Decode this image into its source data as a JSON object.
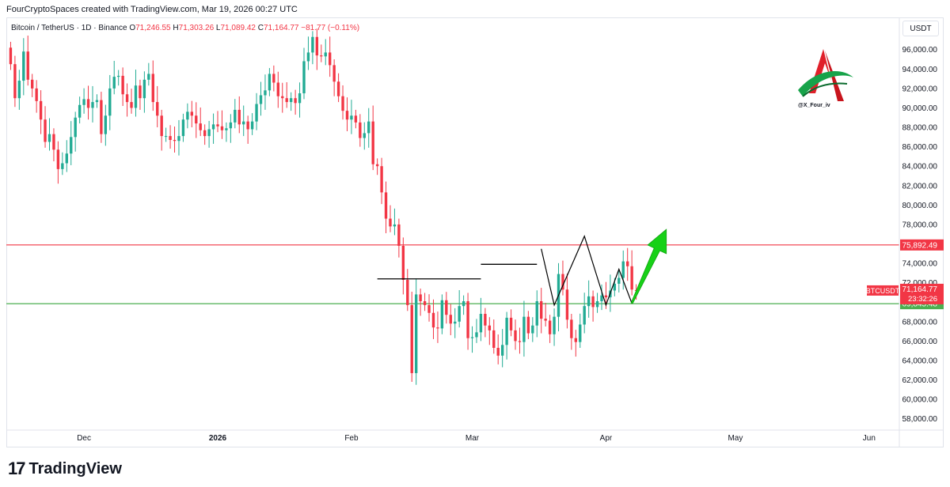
{
  "header": {
    "attribution": "FourCryptoSpaces created with TradingView.com, Mar 19, 2026 00:27 UTC"
  },
  "legend": {
    "symbol": "Bitcoin / TetherUS · 1D · Binance",
    "open_label": "O",
    "open": "71,246.55",
    "high_label": "H",
    "high": "71,303.26",
    "low_label": "L",
    "low": "71,089.42",
    "close_label": "C",
    "close": "71,164.77",
    "change": "−81.77 (−0.11%)"
  },
  "currency_button": "USDT",
  "watermark": {
    "handle": "@X_Four_iv"
  },
  "footer": {
    "brand": "TradingView"
  },
  "colors": {
    "up": "#22ab94",
    "down": "#f23645",
    "resistance": "#f23645",
    "support": "#4caf50",
    "arrow": "#17d117"
  },
  "chart_data": {
    "type": "candlestick",
    "ylim": [
      57000,
      98500
    ],
    "y_ticks": [
      "58,000.00",
      "60,000.00",
      "62,000.00",
      "64,000.00",
      "66,000.00",
      "68,000.00",
      "70,000.00",
      "72,000.00",
      "74,000.00",
      "76,000.00",
      "78,000.00",
      "80,000.00",
      "82,000.00",
      "84,000.00",
      "86,000.00",
      "88,000.00",
      "90,000.00",
      "92,000.00",
      "94,000.00",
      "96,000.00"
    ],
    "x_labels": [
      {
        "label": "Dec",
        "date": "2025-12-01"
      },
      {
        "label": "2026",
        "date": "2026-01-01"
      },
      {
        "label": "Feb",
        "date": "2026-02-01"
      },
      {
        "label": "Mar",
        "date": "2026-03-01"
      },
      {
        "label": "Apr",
        "date": "2026-04-01"
      },
      {
        "label": "May",
        "date": "2026-05-01"
      },
      {
        "label": "Jun",
        "date": "2026-06-01"
      }
    ],
    "x_range": [
      "2025-11-13",
      "2026-06-08"
    ],
    "candles_start": "2025-11-14",
    "closes": [
      94500,
      91000,
      92800,
      95800,
      92900,
      92000,
      90700,
      88800,
      86500,
      87300,
      85700,
      83700,
      84300,
      85300,
      87000,
      89000,
      90300,
      90900,
      90000,
      90600,
      90800,
      87300,
      89200,
      92000,
      93200,
      93300,
      91400,
      90600,
      90000,
      92300,
      91000,
      92900,
      93500,
      90600,
      89200,
      87100,
      87100,
      86700,
      86600,
      87100,
      88800,
      89600,
      89200,
      88400,
      87700,
      87100,
      87800,
      88300,
      88100,
      87700,
      87900,
      88500,
      89800,
      88300,
      88600,
      87800,
      88600,
      90400,
      91300,
      91800,
      93500,
      92600,
      91200,
      91000,
      90600,
      91000,
      90500,
      91500,
      94800,
      95700,
      97300,
      95400,
      95300,
      95700,
      94400,
      92700,
      91200,
      89700,
      88800,
      89200,
      88500,
      86900,
      87400,
      88600,
      84200,
      84000,
      81300,
      78600,
      77800,
      78000,
      75800,
      72300,
      69700,
      62700,
      70800,
      70100,
      69700,
      68900,
      67400,
      67300,
      70200,
      68700,
      67800,
      68000,
      69600,
      70100,
      66300,
      66400,
      66900,
      68800,
      67600,
      67100,
      65300,
      64500,
      65600,
      68400,
      67100,
      66000,
      65900,
      68500,
      66800,
      67600,
      70100,
      68300,
      68100,
      66700,
      68500,
      72900,
      71300,
      68200,
      66300,
      65900,
      67700,
      69600,
      70600,
      69500,
      70100,
      70700,
      70500,
      71200,
      71900,
      72500,
      74200,
      73700,
      71300,
      71165
    ],
    "bodies_open": [
      96200,
      94500,
      91000,
      92800,
      95800,
      92900,
      92000,
      90700,
      88800,
      86500,
      87300,
      85700,
      83700,
      84300,
      85300,
      87000,
      89000,
      90300,
      90900,
      90000,
      90600,
      90800,
      87300,
      89200,
      92000,
      93200,
      93300,
      91400,
      90600,
      90000,
      92300,
      91000,
      92900,
      93500,
      90600,
      89200,
      87100,
      87100,
      86700,
      86600,
      87100,
      88800,
      89600,
      89200,
      88400,
      87700,
      87100,
      87800,
      88300,
      88100,
      87700,
      87900,
      88500,
      89800,
      88300,
      88600,
      87800,
      88600,
      90400,
      91300,
      91800,
      93500,
      92600,
      91200,
      91000,
      90600,
      91000,
      90500,
      91500,
      94800,
      95700,
      97300,
      95400,
      95300,
      95700,
      94400,
      92700,
      91200,
      89700,
      88800,
      89200,
      88500,
      86900,
      87400,
      88600,
      84200,
      84000,
      81300,
      78600,
      77800,
      78000,
      75800,
      72300,
      69700,
      62700,
      70800,
      70100,
      69700,
      68900,
      67400,
      67300,
      70200,
      68700,
      67800,
      68000,
      69600,
      70100,
      66300,
      66400,
      66900,
      68800,
      67600,
      67100,
      65300,
      64500,
      65600,
      68400,
      67100,
      66000,
      65900,
      68500,
      66800,
      67600,
      70100,
      68300,
      68100,
      66700,
      68500,
      72900,
      71300,
      68200,
      66300,
      65900,
      67700,
      69600,
      70600,
      69500,
      70100,
      70700,
      70500,
      71200,
      71900,
      72500,
      74200,
      73700,
      71247
    ],
    "levels": [
      {
        "name": "resistance",
        "value": 75892.49,
        "label": "75,892.49"
      },
      {
        "name": "support",
        "value": 69845.48,
        "label": "69,845.48"
      }
    ],
    "last_price": {
      "label": "BTCUSDT",
      "value": 71164.77,
      "price": "71,164.77",
      "countdown": "23:32:26"
    },
    "ranges_drawn": [
      {
        "from": "2026-02-07",
        "to": "2026-03-03",
        "value": 72400
      },
      {
        "from": "2026-03-03",
        "to": "2026-03-16",
        "value": 73900
      }
    ],
    "projection": [
      {
        "date": "2026-03-17",
        "value": 75500
      },
      {
        "date": "2026-03-20",
        "value": 69700
      },
      {
        "date": "2026-03-27",
        "value": 76800
      },
      {
        "date": "2026-04-01",
        "value": 69700
      },
      {
        "date": "2026-04-04",
        "value": 73400
      },
      {
        "date": "2026-04-07",
        "value": 69900
      }
    ],
    "projection_arrow": {
      "from_date": "2026-04-07",
      "from_value": 69900,
      "to_date": "2026-04-15",
      "to_value": 77500
    }
  }
}
